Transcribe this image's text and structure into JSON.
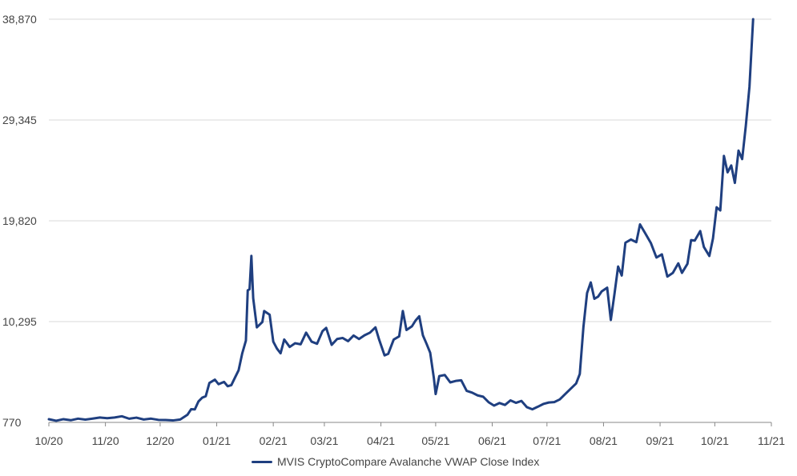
{
  "colors": {
    "series": "#1f3f80",
    "grid": "#d9d9d9",
    "axis": "#888888",
    "text": "#444444"
  },
  "chart_data": {
    "type": "line",
    "title": "",
    "xlabel": "",
    "ylabel": "",
    "ylim": [
      770,
      38870
    ],
    "yticks": [
      770,
      10295,
      19820,
      29345,
      38870
    ],
    "ytick_labels": [
      "770",
      "10,295",
      "19,820",
      "29,345",
      "38,870"
    ],
    "xlim": [
      "2020-10-01",
      "2021-11-01"
    ],
    "xtick_labels": [
      "10/20",
      "11/20",
      "12/20",
      "01/21",
      "02/21",
      "03/21",
      "04/21",
      "05/21",
      "06/21",
      "07/21",
      "08/21",
      "09/21",
      "10/21",
      "11/21"
    ],
    "grid": "horizontal",
    "legend_position": "bottom",
    "series": [
      {
        "name": "MVIS CryptoCompare Avalanche VWAP Close Index",
        "points": [
          [
            "2020-10-01",
            1070
          ],
          [
            "2020-10-05",
            925
          ],
          [
            "2020-10-09",
            1075
          ],
          [
            "2020-10-13",
            975
          ],
          [
            "2020-10-17",
            1125
          ],
          [
            "2020-10-21",
            1035
          ],
          [
            "2020-10-25",
            1130
          ],
          [
            "2020-10-29",
            1230
          ],
          [
            "2020-11-02",
            1165
          ],
          [
            "2020-11-06",
            1235
          ],
          [
            "2020-11-10",
            1350
          ],
          [
            "2020-11-14",
            1120
          ],
          [
            "2020-11-18",
            1220
          ],
          [
            "2020-11-22",
            1045
          ],
          [
            "2020-11-26",
            1125
          ],
          [
            "2020-11-30",
            1010
          ],
          [
            "2020-12-04",
            995
          ],
          [
            "2020-12-08",
            955
          ],
          [
            "2020-12-12",
            1045
          ],
          [
            "2020-12-16",
            1500
          ],
          [
            "2020-12-18",
            2020
          ],
          [
            "2020-12-20",
            2000
          ],
          [
            "2020-12-22",
            2750
          ],
          [
            "2020-12-24",
            3100
          ],
          [
            "2020-12-26",
            3250
          ],
          [
            "2020-12-28",
            4500
          ],
          [
            "2020-12-31",
            4810
          ],
          [
            "2021-01-02",
            4380
          ],
          [
            "2021-01-05",
            4600
          ],
          [
            "2021-01-07",
            4190
          ],
          [
            "2021-01-09",
            4290
          ],
          [
            "2021-01-11",
            5000
          ],
          [
            "2021-01-13",
            5700
          ],
          [
            "2021-01-15",
            7300
          ],
          [
            "2021-01-17",
            8500
          ],
          [
            "2021-01-18",
            13250
          ],
          [
            "2021-01-19",
            13350
          ],
          [
            "2021-01-20",
            16500
          ],
          [
            "2021-01-21",
            12500
          ],
          [
            "2021-01-23",
            9750
          ],
          [
            "2021-01-26",
            10250
          ],
          [
            "2021-01-27",
            11300
          ],
          [
            "2021-01-30",
            10950
          ],
          [
            "2021-02-01",
            8400
          ],
          [
            "2021-02-03",
            7750
          ],
          [
            "2021-02-05",
            7300
          ],
          [
            "2021-02-07",
            8600
          ],
          [
            "2021-02-10",
            7900
          ],
          [
            "2021-02-13",
            8250
          ],
          [
            "2021-02-16",
            8150
          ],
          [
            "2021-02-19",
            9250
          ],
          [
            "2021-02-22",
            8400
          ],
          [
            "2021-02-25",
            8200
          ],
          [
            "2021-02-28",
            9400
          ],
          [
            "2021-03-02",
            9700
          ],
          [
            "2021-03-05",
            8100
          ],
          [
            "2021-03-08",
            8650
          ],
          [
            "2021-03-11",
            8750
          ],
          [
            "2021-03-14",
            8450
          ],
          [
            "2021-03-17",
            8980
          ],
          [
            "2021-03-20",
            8650
          ],
          [
            "2021-03-23",
            9000
          ],
          [
            "2021-03-26",
            9250
          ],
          [
            "2021-03-29",
            9750
          ],
          [
            "2021-03-31",
            8600
          ],
          [
            "2021-04-03",
            7100
          ],
          [
            "2021-04-05",
            7250
          ],
          [
            "2021-04-08",
            8600
          ],
          [
            "2021-04-11",
            8900
          ],
          [
            "2021-04-13",
            11300
          ],
          [
            "2021-04-15",
            9500
          ],
          [
            "2021-04-18",
            9850
          ],
          [
            "2021-04-20",
            10400
          ],
          [
            "2021-04-22",
            10800
          ],
          [
            "2021-04-24",
            9000
          ],
          [
            "2021-04-26",
            8200
          ],
          [
            "2021-04-28",
            7350
          ],
          [
            "2021-04-30",
            4980
          ],
          [
            "2021-05-01",
            3450
          ],
          [
            "2021-05-03",
            5150
          ],
          [
            "2021-05-06",
            5250
          ],
          [
            "2021-05-09",
            4550
          ],
          [
            "2021-05-12",
            4690
          ],
          [
            "2021-05-15",
            4750
          ],
          [
            "2021-05-18",
            3750
          ],
          [
            "2021-05-21",
            3580
          ],
          [
            "2021-05-24",
            3320
          ],
          [
            "2021-05-27",
            3200
          ],
          [
            "2021-05-30",
            2680
          ],
          [
            "2021-06-02",
            2360
          ],
          [
            "2021-06-05",
            2600
          ],
          [
            "2021-06-08",
            2420
          ],
          [
            "2021-06-11",
            2850
          ],
          [
            "2021-06-14",
            2620
          ],
          [
            "2021-06-17",
            2800
          ],
          [
            "2021-06-20",
            2210
          ],
          [
            "2021-06-23",
            2010
          ],
          [
            "2021-06-26",
            2250
          ],
          [
            "2021-06-29",
            2510
          ],
          [
            "2021-07-02",
            2650
          ],
          [
            "2021-07-05",
            2690
          ],
          [
            "2021-07-08",
            2940
          ],
          [
            "2021-07-11",
            3450
          ],
          [
            "2021-07-14",
            3950
          ],
          [
            "2021-07-17",
            4450
          ],
          [
            "2021-07-19",
            5350
          ],
          [
            "2021-07-21",
            9800
          ],
          [
            "2021-07-23",
            13000
          ],
          [
            "2021-07-25",
            14000
          ],
          [
            "2021-07-27",
            12450
          ],
          [
            "2021-07-29",
            12650
          ],
          [
            "2021-07-31",
            13150
          ],
          [
            "2021-08-03",
            13500
          ],
          [
            "2021-08-05",
            10450
          ],
          [
            "2021-08-07",
            12900
          ],
          [
            "2021-08-09",
            15500
          ],
          [
            "2021-08-11",
            14650
          ],
          [
            "2021-08-13",
            17750
          ],
          [
            "2021-08-16",
            18050
          ],
          [
            "2021-08-19",
            17800
          ],
          [
            "2021-08-21",
            19480
          ],
          [
            "2021-08-24",
            18600
          ],
          [
            "2021-08-27",
            17700
          ],
          [
            "2021-08-30",
            16350
          ],
          [
            "2021-09-02",
            16650
          ],
          [
            "2021-09-05",
            14550
          ],
          [
            "2021-09-08",
            14900
          ],
          [
            "2021-09-11",
            15800
          ],
          [
            "2021-09-13",
            14900
          ],
          [
            "2021-09-16",
            15750
          ],
          [
            "2021-09-18",
            18000
          ],
          [
            "2021-09-20",
            17950
          ],
          [
            "2021-09-23",
            18850
          ],
          [
            "2021-09-25",
            17350
          ],
          [
            "2021-09-28",
            16500
          ],
          [
            "2021-09-30",
            18150
          ],
          [
            "2021-10-02",
            21100
          ],
          [
            "2021-10-04",
            20800
          ],
          [
            "2021-10-06",
            25950
          ],
          [
            "2021-10-08",
            24400
          ],
          [
            "2021-10-10",
            25050
          ],
          [
            "2021-10-12",
            23400
          ],
          [
            "2021-10-14",
            26450
          ],
          [
            "2021-10-16",
            25650
          ],
          [
            "2021-10-18",
            28800
          ],
          [
            "2021-10-20",
            32500
          ],
          [
            "2021-10-22",
            38870
          ]
        ]
      }
    ]
  },
  "legend": {
    "label": "MVIS CryptoCompare Avalanche VWAP Close Index"
  }
}
